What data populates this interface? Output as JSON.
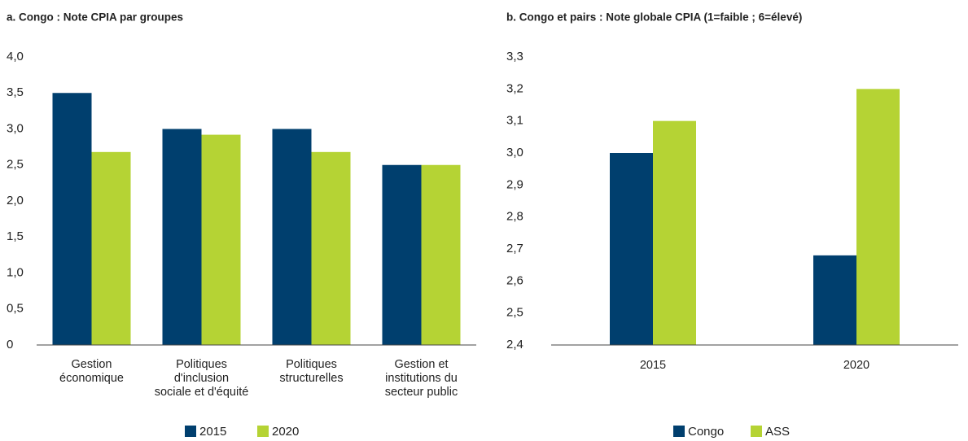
{
  "chart_data": [
    {
      "type": "bar",
      "title": "a. Congo : Note CPIA par groupes",
      "categories": [
        "Gestion\néconomique",
        "Politiques\nd'inclusion\nsociale et d'équité",
        "Politiques\nstructurelles",
        "Gestion et\ninstitutions du\nsecteur public"
      ],
      "series": [
        {
          "name": "2015",
          "color": "#003f6e",
          "values": [
            3.5,
            3.0,
            3.0,
            2.5
          ]
        },
        {
          "name": "2020",
          "color": "#b5d334",
          "values": [
            2.68,
            2.92,
            2.68,
            2.5
          ]
        }
      ],
      "ylim": [
        0,
        4
      ],
      "yticks": [
        0,
        {
          "value": 0.5,
          "label": "0,5"
        },
        {
          "value": 1,
          "label": "1,0"
        },
        {
          "value": 1.5,
          "label": "1,5"
        },
        {
          "value": 2,
          "label": "2,0"
        },
        {
          "value": 2.5,
          "label": "2,5"
        },
        {
          "value": 3,
          "label": "3,0"
        },
        {
          "value": 3.5,
          "label": "3,5"
        },
        {
          "value": 4,
          "label": "4,0"
        }
      ],
      "legend": "bottom"
    },
    {
      "type": "bar",
      "title": "b. Congo et pairs : Note globale CPIA (1=faible ; 6=élevé)",
      "categories": [
        "2015",
        "2020"
      ],
      "series": [
        {
          "name": "Congo",
          "color": "#003f6e",
          "values": [
            3.0,
            2.68
          ]
        },
        {
          "name": "ASS",
          "color": "#b5d334",
          "values": [
            3.1,
            3.2
          ]
        }
      ],
      "ylim": [
        2.4,
        3.3
      ],
      "yticks": [
        {
          "value": 2.4,
          "label": "2,4"
        },
        {
          "value": 2.5,
          "label": "2,5"
        },
        {
          "value": 2.6,
          "label": "2,6"
        },
        {
          "value": 2.7,
          "label": "2,7"
        },
        {
          "value": 2.8,
          "label": "2,8"
        },
        {
          "value": 2.9,
          "label": "2,9"
        },
        {
          "value": 3.0,
          "label": "3,0"
        },
        {
          "value": 3.1,
          "label": "3,1"
        },
        {
          "value": 3.2,
          "label": "3,2"
        },
        {
          "value": 3.3,
          "label": "3,3"
        }
      ],
      "legend": "bottom"
    }
  ]
}
